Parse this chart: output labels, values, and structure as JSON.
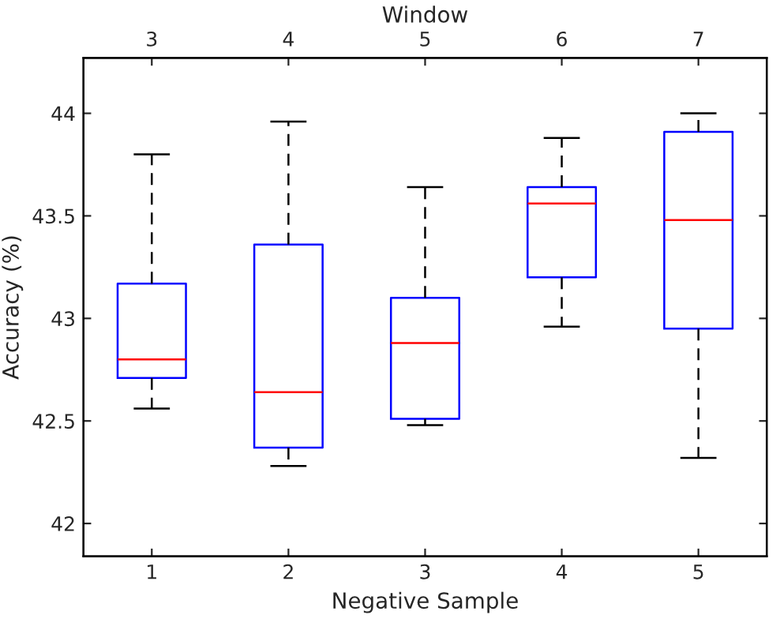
{
  "chart_data": {
    "type": "box",
    "xlabel": "Negative Sample",
    "ylabel": "Accuracy (%)",
    "x2label": "Window",
    "x": [
      1,
      2,
      3,
      4,
      5
    ],
    "boxes": [
      {
        "low": 42.56,
        "q1": 42.71,
        "median": 42.8,
        "q3": 43.17,
        "high": 43.8
      },
      {
        "low": 42.28,
        "q1": 42.37,
        "median": 42.64,
        "q3": 43.36,
        "high": 43.96
      },
      {
        "low": 42.48,
        "q1": 42.51,
        "median": 42.88,
        "q3": 43.1,
        "high": 43.64
      },
      {
        "low": 42.96,
        "q1": 43.2,
        "median": 43.56,
        "q3": 43.64,
        "high": 43.88
      },
      {
        "low": 42.32,
        "q1": 42.95,
        "median": 43.48,
        "q3": 43.91,
        "high": 44.0
      }
    ],
    "color": "#0000ff",
    "line_style": "dashed",
    "xlim": [
      0.5,
      5.5
    ],
    "xticks": [
      1,
      2,
      3,
      4,
      5
    ],
    "x2lim": [
      2.5,
      7.5
    ],
    "x2ticks": [
      3,
      4,
      5,
      6,
      7
    ],
    "ylim": [
      41.84,
      44.27
    ],
    "yticks": [
      42,
      42.5,
      43,
      43.5,
      44
    ],
    "grid": false,
    "legend": false
  }
}
